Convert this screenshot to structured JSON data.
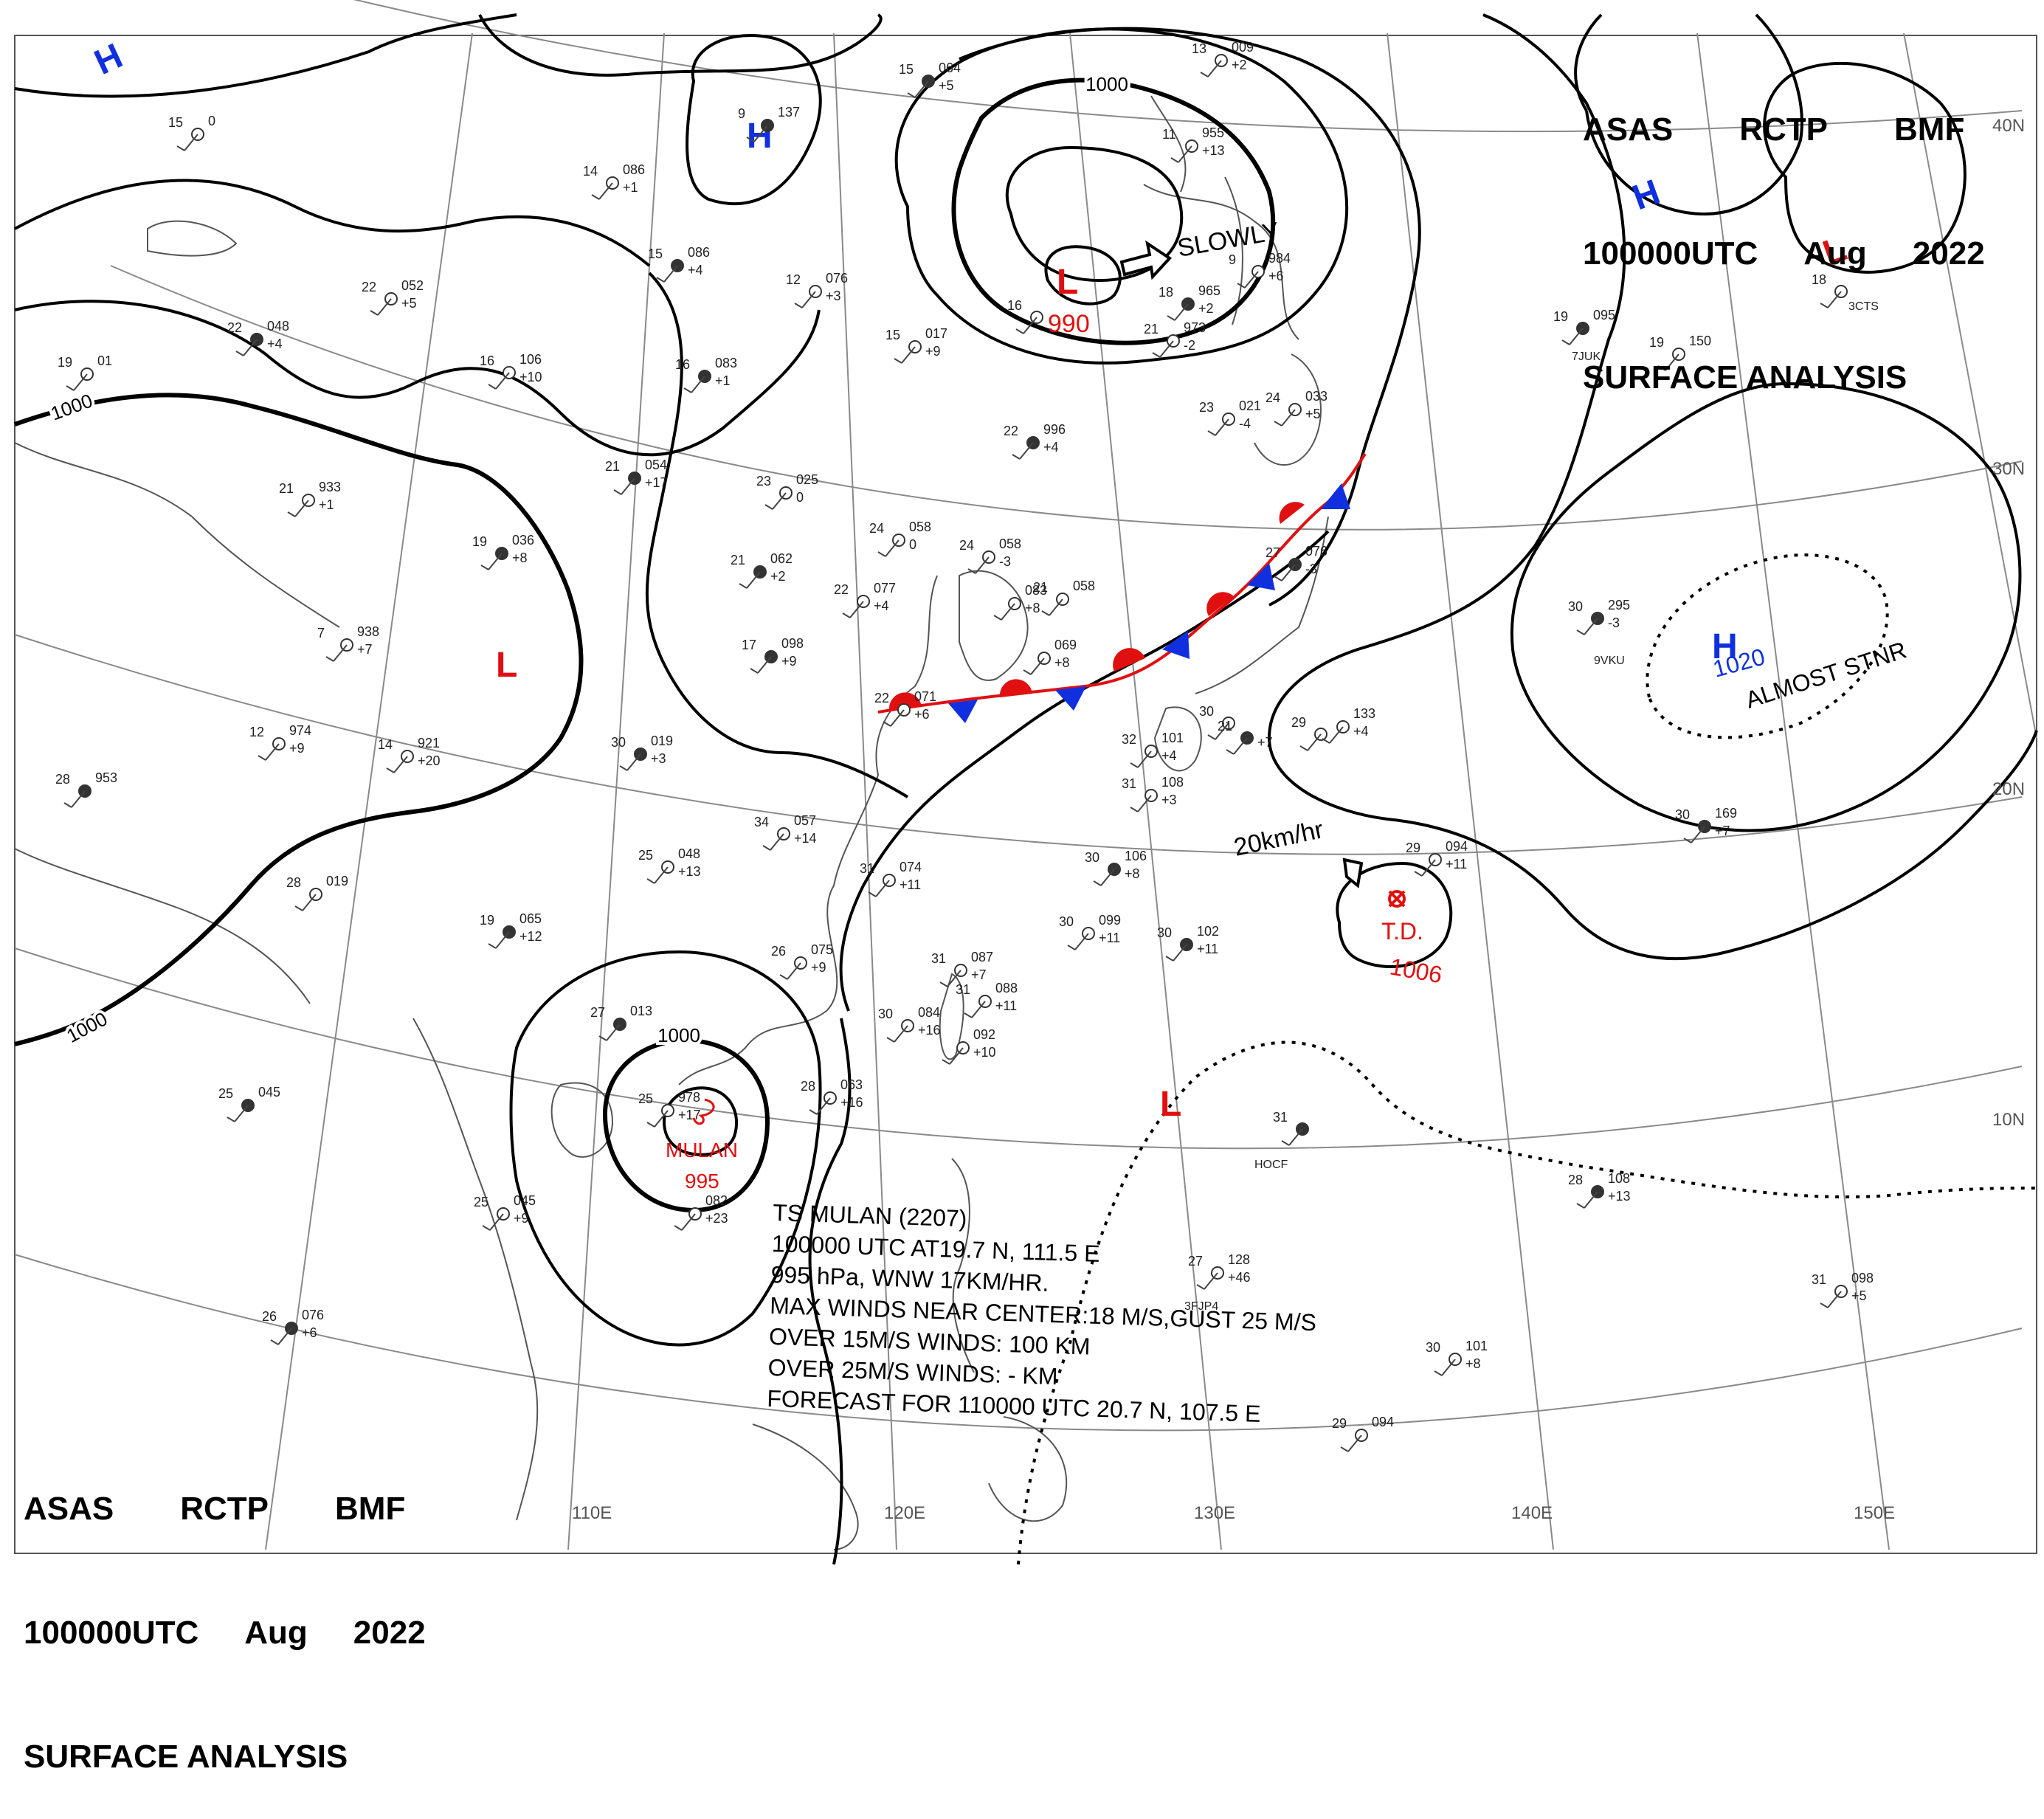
{
  "header": {
    "line1": [
      "ASAS",
      "RCTP",
      "BMF"
    ],
    "line2": [
      "100000UTC",
      "Aug",
      "2022"
    ],
    "line3": "SURFACE ANALYSIS"
  },
  "lat_labels": [
    "40N",
    "30N",
    "20N",
    "10N"
  ],
  "lon_labels": [
    "110E",
    "120E",
    "130E",
    "140E",
    "150E"
  ],
  "isobar_labels": [
    "1000",
    "1000",
    "1000",
    "1000"
  ],
  "pressure_centers": [
    {
      "symbol": "H",
      "type": "high",
      "color": "#1030e0"
    },
    {
      "symbol": "H",
      "type": "high",
      "color": "#1030e0"
    },
    {
      "symbol": "H",
      "type": "high",
      "color": "#1030e0"
    },
    {
      "symbol": "H",
      "type": "high",
      "color": "#1030e0",
      "value": "1020",
      "note": "ALMOST STNR"
    },
    {
      "symbol": "L",
      "type": "low",
      "color": "#e01010",
      "value": "990",
      "movement": "SLOWLY"
    },
    {
      "symbol": "L",
      "type": "low",
      "color": "#e01010"
    },
    {
      "symbol": "L",
      "type": "low",
      "color": "#e01010"
    },
    {
      "symbol": "L",
      "type": "low",
      "color": "#e01010"
    }
  ],
  "storms": {
    "mulan": {
      "name": "MULAN",
      "pressure": "995"
    },
    "td": {
      "name": "T.D.",
      "pressure": "1006",
      "speed": "20km/hr"
    }
  },
  "ts_info": [
    "TS MULAN (2207)",
    "100000 UTC AT19.7 N, 111.5 E",
    "995 hPa, WNW 17KM/HR.",
    "MAX WINDS NEAR CENTER:18 M/S,GUST 25 M/S",
    "OVER 15M/S WINDS: 100 KM",
    "OVER 25M/S WINDS: - KM",
    "FORECAST FOR 110000 UTC 20.7 N, 107.5 E"
  ],
  "stations": [
    {
      "t": "15",
      "p": "064",
      "d": "+5"
    },
    {
      "t": "13",
      "p": "009",
      "d": "+2"
    },
    {
      "t": "15",
      "p": "0",
      "d": ""
    },
    {
      "t": "9",
      "p": "137",
      "d": ""
    },
    {
      "t": "14",
      "p": "086",
      "d": "+1"
    },
    {
      "t": "11",
      "p": "955",
      "d": "+13"
    },
    {
      "t": "15",
      "p": "086",
      "d": "+4"
    },
    {
      "t": "12",
      "p": "076",
      "d": "+3"
    },
    {
      "t": "22",
      "p": "052",
      "d": "+5"
    },
    {
      "t": "22",
      "p": "048",
      "d": "+4"
    },
    {
      "t": "19",
      "p": "01",
      "d": ""
    },
    {
      "t": "16",
      "p": "106",
      "d": "+10"
    },
    {
      "t": "16",
      "p": "083",
      "d": "+1"
    },
    {
      "t": "15",
      "p": "017",
      "d": "+9"
    },
    {
      "t": "16",
      "p": "",
      "d": ""
    },
    {
      "t": "18",
      "p": "965",
      "d": "+2"
    },
    {
      "t": "9",
      "p": "984",
      "d": "+6"
    },
    {
      "t": "21",
      "p": "973",
      "d": "-2"
    },
    {
      "t": "22",
      "p": "996",
      "d": "+4"
    },
    {
      "t": "23",
      "p": "021",
      "d": "-4"
    },
    {
      "t": "24",
      "p": "033",
      "d": "+5"
    },
    {
      "t": "19",
      "p": "095",
      "d": ""
    },
    {
      "t": "19",
      "p": "150",
      "d": ""
    },
    {
      "t": "18",
      "p": "",
      "d": ""
    },
    {
      "t": "21",
      "p": "054",
      "d": "+17"
    },
    {
      "t": "23",
      "p": "025",
      "d": "0"
    },
    {
      "t": "21",
      "p": "933",
      "d": "+1"
    },
    {
      "t": "19",
      "p": "036",
      "d": "+8"
    },
    {
      "t": "24",
      "p": "058",
      "d": "0"
    },
    {
      "t": "24",
      "p": "058",
      "d": "-3"
    },
    {
      "t": "21",
      "p": "062",
      "d": "+2"
    },
    {
      "t": "22",
      "p": "077",
      "d": "+4"
    },
    {
      "t": "21",
      "p": "058",
      "d": ""
    },
    {
      "t": "27",
      "p": "076",
      "d": "-3"
    },
    {
      "t": "",
      "p": "083",
      "d": "+8"
    },
    {
      "t": "7",
      "p": "938",
      "d": "+7"
    },
    {
      "t": "17",
      "p": "098",
      "d": "+9"
    },
    {
      "t": "",
      "p": "069",
      "d": "+8"
    },
    {
      "t": "22",
      "p": "071",
      "d": "+6"
    },
    {
      "t": "30",
      "p": "295",
      "d": "-3"
    },
    {
      "t": "12",
      "p": "974",
      "d": "+9"
    },
    {
      "t": "14",
      "p": "921",
      "d": "+20"
    },
    {
      "t": "30",
      "p": "019",
      "d": "+3"
    },
    {
      "t": "32",
      "p": "101",
      "d": "+4"
    },
    {
      "t": "30",
      "p": "",
      "d": ""
    },
    {
      "t": "21",
      "p": "",
      "d": "+7"
    },
    {
      "t": "29",
      "p": "",
      "d": ""
    },
    {
      "t": "",
      "p": "133",
      "d": "+4"
    },
    {
      "t": "28",
      "p": "953",
      "d": ""
    },
    {
      "t": "31",
      "p": "108",
      "d": "+3"
    },
    {
      "t": "34",
      "p": "057",
      "d": "+14"
    },
    {
      "t": "30",
      "p": "169",
      "d": "+7"
    },
    {
      "t": "25",
      "p": "048",
      "d": "+13"
    },
    {
      "t": "31",
      "p": "074",
      "d": "+11"
    },
    {
      "t": "30",
      "p": "106",
      "d": "+8"
    },
    {
      "t": "29",
      "p": "094",
      "d": "+11"
    },
    {
      "t": "28",
      "p": "019",
      "d": ""
    },
    {
      "t": "19",
      "p": "065",
      "d": "+12"
    },
    {
      "t": "26",
      "p": "075",
      "d": "+9"
    },
    {
      "t": "30",
      "p": "099",
      "d": "+11"
    },
    {
      "t": "30",
      "p": "102",
      "d": "+11"
    },
    {
      "t": "31",
      "p": "087",
      "d": "+7"
    },
    {
      "t": "31",
      "p": "088",
      "d": "+11"
    },
    {
      "t": "27",
      "p": "013",
      "d": ""
    },
    {
      "t": "30",
      "p": "084",
      "d": "+16"
    },
    {
      "t": "",
      "p": "092",
      "d": "+10"
    },
    {
      "t": "25",
      "p": "045",
      "d": ""
    },
    {
      "t": "25",
      "p": "978",
      "d": "+17"
    },
    {
      "t": "28",
      "p": "063",
      "d": "+16"
    },
    {
      "t": "31",
      "p": "",
      "d": ""
    },
    {
      "t": "25",
      "p": "045",
      "d": "+9"
    },
    {
      "t": "",
      "p": "082",
      "d": "+23"
    },
    {
      "t": "28",
      "p": "108",
      "d": "+13"
    },
    {
      "t": "27",
      "p": "128",
      "d": "+46"
    },
    {
      "t": "31",
      "p": "098",
      "d": "+5"
    },
    {
      "t": "26",
      "p": "076",
      "d": "+6"
    },
    {
      "t": "30",
      "p": "101",
      "d": "+8"
    },
    {
      "t": "29",
      "p": "094",
      "d": ""
    }
  ],
  "station_ids": [
    "7JUK",
    "9VKU",
    "HOCF",
    "3FJP4",
    "3CTS"
  ]
}
